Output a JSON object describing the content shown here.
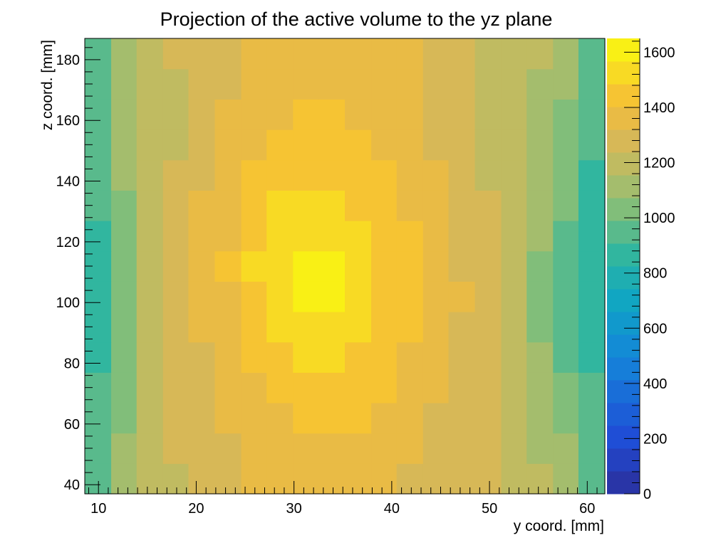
{
  "chart_data": {
    "type": "heatmap",
    "title": "Projection of the active volume to the yz plane",
    "xlabel": "y coord. [mm]",
    "ylabel": "z coord. [mm]",
    "xlim": [
      8.6,
      61.8
    ],
    "ylim": [
      37,
      187
    ],
    "xticks": [
      10,
      20,
      30,
      40,
      50,
      60
    ],
    "yticks": [
      40,
      60,
      80,
      100,
      120,
      140,
      160,
      180
    ],
    "colorbar": {
      "range": [
        0,
        1650
      ],
      "ticks": [
        0,
        200,
        400,
        600,
        800,
        1000,
        1200,
        1400,
        1600
      ],
      "levels": 20
    },
    "x_bins_mm": [
      8.6,
      11.3,
      13.9,
      16.6,
      19.2,
      21.9,
      24.6,
      27.2,
      29.9,
      32.5,
      35.2,
      37.9,
      40.5,
      43.2,
      45.8,
      48.5,
      51.2,
      53.8,
      56.5,
      59.1,
      61.8
    ],
    "z_bins_mm": [
      37,
      47,
      57,
      67,
      77,
      87,
      97,
      107,
      117,
      127,
      137,
      147,
      157,
      167,
      177,
      187
    ],
    "z_values": [
      [
        950,
        1100,
        1180,
        1230,
        1260,
        1290,
        1320,
        1340,
        1350,
        1360,
        1350,
        1330,
        1310,
        1290,
        1260,
        1240,
        1200,
        1160,
        1100,
        970
      ],
      [
        930,
        1080,
        1170,
        1240,
        1270,
        1300,
        1330,
        1360,
        1380,
        1390,
        1380,
        1350,
        1320,
        1300,
        1270,
        1240,
        1200,
        1150,
        1080,
        950
      ],
      [
        920,
        1060,
        1160,
        1250,
        1290,
        1320,
        1370,
        1390,
        1420,
        1430,
        1410,
        1380,
        1340,
        1300,
        1280,
        1250,
        1200,
        1130,
        1040,
        940
      ],
      [
        910,
        1050,
        1170,
        1260,
        1300,
        1350,
        1400,
        1440,
        1460,
        1470,
        1450,
        1410,
        1370,
        1330,
        1290,
        1260,
        1190,
        1100,
        1000,
        920
      ],
      [
        900,
        1040,
        1180,
        1260,
        1310,
        1370,
        1420,
        1470,
        1500,
        1510,
        1480,
        1440,
        1390,
        1340,
        1300,
        1260,
        1180,
        1080,
        980,
        890
      ],
      [
        890,
        1030,
        1170,
        1270,
        1320,
        1390,
        1450,
        1500,
        1540,
        1560,
        1510,
        1460,
        1410,
        1350,
        1310,
        1270,
        1170,
        1070,
        960,
        870
      ],
      [
        880,
        1030,
        1170,
        1270,
        1330,
        1400,
        1480,
        1530,
        1570,
        1580,
        1530,
        1470,
        1420,
        1360,
        1320,
        1260,
        1160,
        1060,
        950,
        850
      ],
      [
        890,
        1040,
        1170,
        1270,
        1330,
        1410,
        1490,
        1550,
        1590,
        1600,
        1540,
        1480,
        1420,
        1360,
        1310,
        1250,
        1160,
        1070,
        960,
        850
      ],
      [
        900,
        1050,
        1160,
        1260,
        1330,
        1400,
        1480,
        1530,
        1560,
        1560,
        1520,
        1470,
        1410,
        1350,
        1300,
        1240,
        1160,
        1080,
        980,
        860
      ],
      [
        910,
        1060,
        1160,
        1250,
        1320,
        1390,
        1450,
        1490,
        1510,
        1510,
        1480,
        1450,
        1400,
        1340,
        1290,
        1240,
        1170,
        1100,
        1000,
        880
      ],
      [
        920,
        1080,
        1160,
        1240,
        1300,
        1360,
        1410,
        1450,
        1470,
        1470,
        1440,
        1410,
        1370,
        1320,
        1280,
        1230,
        1180,
        1120,
        1030,
        900
      ],
      [
        930,
        1100,
        1170,
        1230,
        1290,
        1330,
        1380,
        1420,
        1440,
        1440,
        1420,
        1380,
        1350,
        1310,
        1270,
        1230,
        1190,
        1140,
        1060,
        920
      ],
      [
        940,
        1110,
        1170,
        1230,
        1280,
        1320,
        1360,
        1390,
        1410,
        1420,
        1400,
        1370,
        1340,
        1300,
        1260,
        1230,
        1190,
        1150,
        1070,
        930
      ],
      [
        950,
        1120,
        1180,
        1230,
        1270,
        1310,
        1340,
        1370,
        1380,
        1390,
        1380,
        1360,
        1330,
        1290,
        1250,
        1220,
        1190,
        1150,
        1080,
        940
      ],
      [
        960,
        1130,
        1190,
        1240,
        1270,
        1300,
        1330,
        1350,
        1360,
        1370,
        1360,
        1340,
        1320,
        1280,
        1250,
        1220,
        1200,
        1160,
        1090,
        960
      ]
    ]
  }
}
